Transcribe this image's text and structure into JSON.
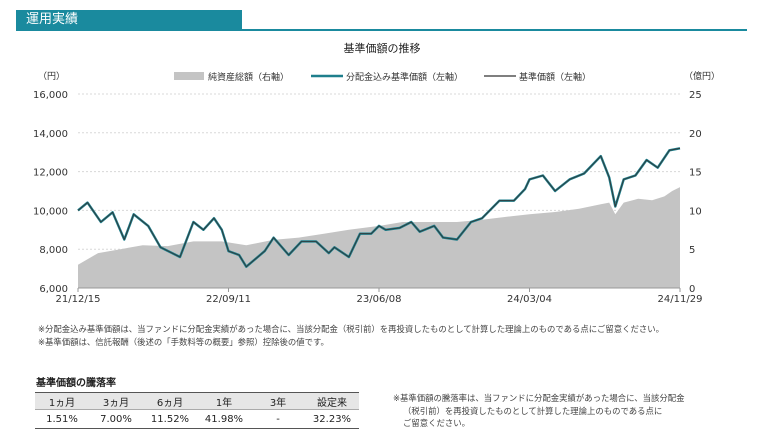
{
  "section_title": "運用実績",
  "chart_data": {
    "type": "line",
    "title": "基準価額の推移",
    "left_unit": "（円）",
    "right_unit": "（億円）",
    "legend": [
      "純資産総額（右軸）",
      "分配金込み基準価額（左軸）",
      "基準価額（左軸）"
    ],
    "ylim_left": [
      6000,
      16000
    ],
    "yticks_left": [
      "16,000",
      "14,000",
      "12,000",
      "10,000",
      "8,000",
      "6,000"
    ],
    "ylim_right": [
      0,
      25
    ],
    "yticks_right": [
      "25",
      "20",
      "15",
      "10",
      "5",
      "0"
    ],
    "xlim": [
      "2021-12-15",
      "2024-11-29"
    ],
    "xticks": [
      "21/12/15",
      "22/09/11",
      "23/06/08",
      "24/03/04",
      "24/11/29"
    ],
    "colors": {
      "nav_area": "#c4c4c4",
      "nav_with_dist": "#1e7f8c",
      "nav": "#333333"
    },
    "series": [
      {
        "name": "分配金込み基準価額（左軸）",
        "axis": "left",
        "x": [
          "2021-12-15",
          "2022-01-01",
          "2022-01-25",
          "2022-02-15",
          "2022-03-08",
          "2022-03-25",
          "2022-04-20",
          "2022-05-12",
          "2022-06-16",
          "2022-07-10",
          "2022-07-28",
          "2022-08-16",
          "2022-08-30",
          "2022-09-11",
          "2022-09-30",
          "2022-10-13",
          "2022-11-15",
          "2022-12-01",
          "2022-12-28",
          "2023-01-20",
          "2023-02-15",
          "2023-03-10",
          "2023-03-20",
          "2023-04-15",
          "2023-05-05",
          "2023-05-25",
          "2023-06-08",
          "2023-06-20",
          "2023-07-15",
          "2023-08-05",
          "2023-08-20",
          "2023-09-15",
          "2023-10-01",
          "2023-10-26",
          "2023-11-20",
          "2023-12-10",
          "2024-01-10",
          "2024-02-05",
          "2024-02-25",
          "2024-03-04",
          "2024-03-28",
          "2024-04-19",
          "2024-05-15",
          "2024-06-10",
          "2024-07-10",
          "2024-07-25",
          "2024-08-05",
          "2024-08-20",
          "2024-09-10",
          "2024-09-30",
          "2024-10-20",
          "2024-11-10",
          "2024-11-29"
        ],
        "values": [
          10000,
          10400,
          9400,
          9900,
          8500,
          9800,
          9200,
          8100,
          7600,
          9400,
          9000,
          9600,
          9000,
          7900,
          7700,
          7100,
          7900,
          8600,
          7700,
          8400,
          8400,
          7800,
          8100,
          7600,
          8800,
          8800,
          9200,
          9000,
          9100,
          9400,
          8900,
          9200,
          8600,
          8500,
          9400,
          9600,
          10500,
          10500,
          11100,
          11600,
          11800,
          11000,
          11600,
          11900,
          12800,
          11700,
          10200,
          11600,
          11800,
          12600,
          12200,
          13100,
          13200
        ]
      },
      {
        "name": "基準価額（左軸）",
        "axis": "left",
        "x": [
          "2021-12-15",
          "2022-01-01",
          "2022-01-25",
          "2022-02-15",
          "2022-03-08",
          "2022-03-25",
          "2022-04-20",
          "2022-05-12",
          "2022-06-16",
          "2022-07-10",
          "2022-07-28",
          "2022-08-16",
          "2022-08-30",
          "2022-09-11",
          "2022-09-30",
          "2022-10-13",
          "2022-11-15",
          "2022-12-01",
          "2022-12-28",
          "2023-01-20",
          "2023-02-15",
          "2023-03-10",
          "2023-03-20",
          "2023-04-15",
          "2023-05-05",
          "2023-05-25",
          "2023-06-08",
          "2023-06-20",
          "2023-07-15",
          "2023-08-05",
          "2023-08-20",
          "2023-09-15",
          "2023-10-01",
          "2023-10-26",
          "2023-11-20",
          "2023-12-10",
          "2024-01-10",
          "2024-02-05",
          "2024-02-25",
          "2024-03-04",
          "2024-03-28",
          "2024-04-19",
          "2024-05-15",
          "2024-06-10",
          "2024-07-10",
          "2024-07-25",
          "2024-08-05",
          "2024-08-20",
          "2024-09-10",
          "2024-09-30",
          "2024-10-20",
          "2024-11-10",
          "2024-11-29"
        ],
        "values": [
          10000,
          10400,
          9400,
          9900,
          8500,
          9800,
          9200,
          8100,
          7600,
          9400,
          9000,
          9600,
          9000,
          7900,
          7700,
          7100,
          7900,
          8600,
          7700,
          8400,
          8400,
          7800,
          8100,
          7600,
          8800,
          8800,
          9200,
          9000,
          9100,
          9400,
          8900,
          9200,
          8600,
          8500,
          9400,
          9600,
          10500,
          10500,
          11100,
          11600,
          11800,
          11000,
          11600,
          11900,
          12800,
          11700,
          10200,
          11600,
          11800,
          12600,
          12200,
          13100,
          13200
        ]
      },
      {
        "name": "純資産総額（右軸）",
        "axis": "right",
        "x": [
          "2021-12-15",
          "2022-01-20",
          "2022-03-01",
          "2022-04-10",
          "2022-05-25",
          "2022-07-10",
          "2022-08-30",
          "2022-10-13",
          "2022-11-30",
          "2023-01-15",
          "2023-03-01",
          "2023-04-15",
          "2023-06-08",
          "2023-07-20",
          "2023-09-01",
          "2023-10-26",
          "2023-12-10",
          "2024-01-25",
          "2024-03-04",
          "2024-04-19",
          "2024-06-01",
          "2024-07-10",
          "2024-07-25",
          "2024-08-05",
          "2024-08-20",
          "2024-09-15",
          "2024-10-10",
          "2024-11-01",
          "2024-11-15",
          "2024-11-29"
        ],
        "values": [
          3.0,
          4.5,
          5.0,
          5.5,
          5.4,
          6.0,
          6.0,
          5.5,
          6.2,
          6.5,
          7.0,
          7.5,
          8.0,
          8.5,
          8.5,
          8.5,
          8.8,
          9.2,
          9.5,
          9.8,
          10.2,
          10.8,
          11.0,
          9.5,
          11.0,
          11.5,
          11.3,
          11.8,
          12.5,
          13.0
        ]
      }
    ]
  },
  "footnotes": [
    "※分配金込み基準価額は、当ファンドに分配金実績があった場合に、当該分配金（税引前）を再投資したものとして計算した理論上のものである点にご留意ください。",
    "※基準価額は、信託報酬（後述の「手数料等の概要」参照）控除後の値です。"
  ],
  "performance": {
    "title": "基準価額の騰落率",
    "headers": [
      "1ヵ月",
      "3ヵ月",
      "6ヵ月",
      "1年",
      "3年",
      "設定来"
    ],
    "values": [
      "1.51%",
      "7.00%",
      "11.52%",
      "41.98%",
      "-",
      "32.23%"
    ],
    "note_lines": [
      "※基準価額の騰落率は、当ファンドに分配金実績があった場合に、当該分配金",
      "（税引前）を再投資したものとして計算した理論上のものである点に",
      "ご留意ください。"
    ]
  }
}
